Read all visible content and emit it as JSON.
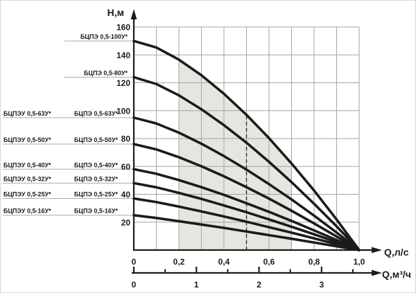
{
  "chart_data": {
    "type": "line",
    "description": "Head-flow (H-Q) performance curves for BTsPE submersible pumps",
    "ylabel": "H,м",
    "xlabel_primary": "Q,л/с",
    "xlabel_secondary": "Q,м³/ч",
    "y_axis": {
      "min": 0,
      "max": 160,
      "tick_step": 20,
      "grid_step_m": 20,
      "tick_labels": [
        "20",
        "40",
        "60",
        "80",
        "100",
        "120",
        "140",
        "160"
      ]
    },
    "x_axis_ls": {
      "min": 0,
      "max": 1.0,
      "grid_step": 0.1,
      "tick_values": [
        0,
        0.2,
        0.4,
        0.6,
        0.8,
        1.0
      ],
      "tick_labels": [
        "0",
        "0,2",
        "0,4",
        "0,6",
        "0,8",
        "1,0"
      ]
    },
    "x_axis_m3h": {
      "ls_per_m3h": 0.27778,
      "major_tick_values": [
        0,
        1,
        2,
        3
      ],
      "major_tick_labels": [
        "0",
        "1",
        "2",
        "3"
      ],
      "minor_tick_values": [
        0.5,
        1.5,
        2.5,
        3.5
      ]
    },
    "q_ls": [
      0,
      0.1,
      0.2,
      0.3,
      0.4,
      0.5,
      0.6,
      0.7,
      0.8,
      0.9,
      1.0
    ],
    "series": [
      {
        "label": "БЦПЭ 0,5-100У*",
        "label_alt": null,
        "h_m": [
          150,
          145.3,
          136.6,
          125.4,
          112.1,
          97.0,
          80.3,
          62.1,
          42.7,
          21.9,
          0
        ]
      },
      {
        "label": "БЦПЭ 0,5-80У*",
        "label_alt": null,
        "h_m": [
          124,
          119.1,
          111.0,
          101.0,
          89.6,
          77.0,
          63.3,
          48.7,
          33.2,
          17.0,
          0
        ]
      },
      {
        "label": "БЦПЭ 0,5-63У*",
        "label_alt": "БЦПЭУ 0,5-63У*",
        "h_m": [
          95,
          90.8,
          84.2,
          76.3,
          67.4,
          57.7,
          47.3,
          36.3,
          24.7,
          12.6,
          0
        ]
      },
      {
        "label": "БЦПЭ 0,5-50У*",
        "label_alt": "БЦПЭУ 0,5-50У*",
        "h_m": [
          76,
          72.2,
          66.6,
          60.1,
          52.9,
          45.1,
          36.9,
          28.2,
          19.1,
          9.7,
          0
        ]
      },
      {
        "label": "БЦПЭ 0,5-40У*",
        "label_alt": "БЦПЭУ 0,5-40У*",
        "h_m": [
          58,
          54.7,
          50.2,
          45.1,
          39.6,
          33.6,
          27.4,
          20.9,
          14.1,
          7.2,
          0
        ]
      },
      {
        "label": "БЦПЭ 0,5-32У*",
        "label_alt": "БЦПЭУ 0,5-32У*",
        "h_m": [
          48,
          45.0,
          41.0,
          36.7,
          32.0,
          27.1,
          22.0,
          16.7,
          11.3,
          5.7,
          0
        ]
      },
      {
        "label": "БЦПЭ 0,5-25У*",
        "label_alt": "БЦПЭУ 0,5-25У*",
        "h_m": [
          37,
          34.4,
          31.2,
          27.7,
          24.1,
          20.3,
          16.4,
          12.5,
          8.4,
          4.2,
          0
        ]
      },
      {
        "label": "БЦПЭ 0,5-16У*",
        "label_alt": "БЦПЭУ 0,5-16У*",
        "h_m": [
          25,
          23.0,
          20.7,
          18.3,
          15.9,
          13.3,
          10.7,
          8.1,
          5.4,
          2.7,
          0
        ]
      }
    ],
    "shaded_zone": {
      "q_from": 0.2,
      "q_to": 0.7
    },
    "dashed_line_q": 0.5,
    "legend_position": "left-leader-lines",
    "grid": "on",
    "colors": {
      "curve": "#1b1b1b",
      "axis": "#1b1b1b",
      "grid": "#a3a3a3",
      "leader": "#aaaaaa",
      "shade": "#e6e5e0",
      "dashed": "#2e2e2e",
      "text": "#1b1b1b",
      "background": "#ffffff"
    }
  }
}
